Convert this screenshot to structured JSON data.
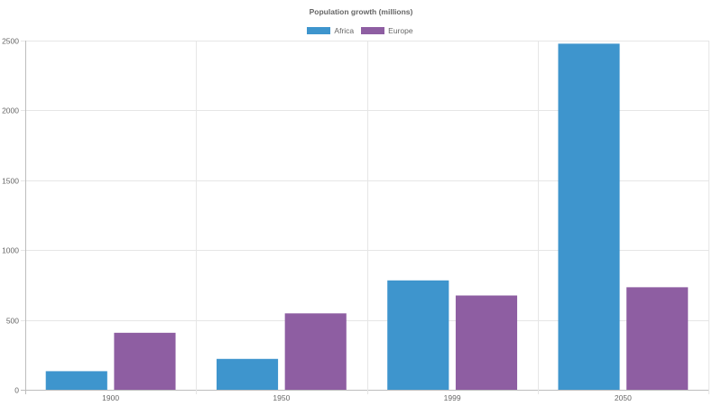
{
  "chart_data": {
    "type": "bar",
    "title": "Population growth (millions)",
    "categories": [
      "1900",
      "1950",
      "1999",
      "2050"
    ],
    "series": [
      {
        "name": "Africa",
        "color": "#3e95cd",
        "values": [
          133,
          221,
          783,
          2478
        ]
      },
      {
        "name": "Europe",
        "color": "#8e5ea2",
        "values": [
          408,
          547,
          675,
          734
        ]
      }
    ],
    "xlabel": "",
    "ylabel": "",
    "ylim": [
      0,
      2500
    ],
    "yticks": [
      0,
      500,
      1000,
      1500,
      2000,
      2500
    ],
    "grid": true,
    "legend_position": "top"
  },
  "colors": {
    "grid": "#e6e6e6",
    "axis": "#bdbdbd",
    "text": "#666666"
  }
}
